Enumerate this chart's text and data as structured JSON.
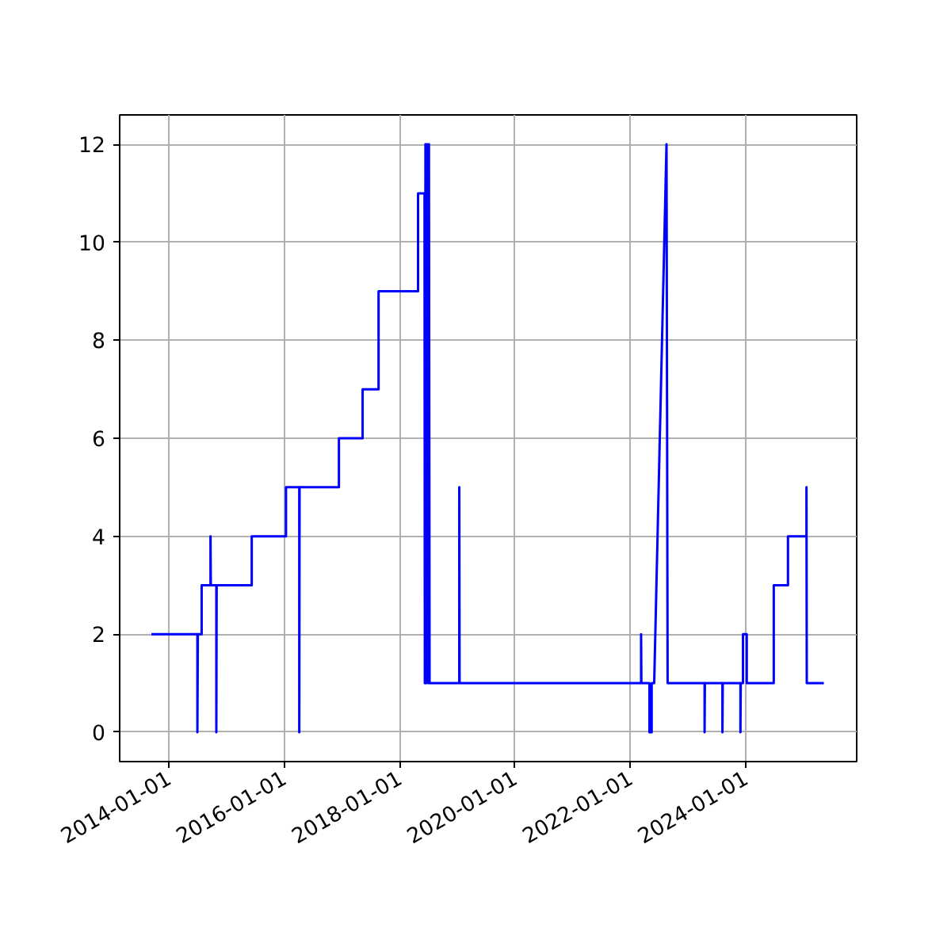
{
  "chart_data": {
    "type": "line",
    "x": [
      "2013-09-13",
      "2014-07-01",
      "2014-07-01",
      "2014-07-04",
      "2014-07-28",
      "2014-07-28",
      "2014-09-22",
      "2014-09-22",
      "2014-09-24",
      "2014-10-29",
      "2014-10-29",
      "2014-10-31",
      "2015-06-10",
      "2015-06-10",
      "2016-01-13",
      "2016-01-13",
      "2016-04-06",
      "2016-04-06",
      "2016-04-08",
      "2016-12-13",
      "2016-12-13",
      "2017-05-12",
      "2017-05-12",
      "2017-08-21",
      "2017-08-21",
      "2018-04-28",
      "2018-04-28",
      "2018-06-08",
      "2018-06-10",
      "2018-06-14",
      "2018-06-20",
      "2018-06-26",
      "2018-07-02",
      "2018-07-06",
      "2018-07-10",
      "2019-01-14",
      "2019-01-14",
      "2019-01-16",
      "2022-03-10",
      "2022-03-10",
      "2022-03-12",
      "2022-05-02",
      "2022-05-02",
      "2022-05-16",
      "2022-05-16",
      "2022-06-01",
      "2022-08-18",
      "2022-08-25",
      "2023-04-16",
      "2023-04-16",
      "2023-04-18",
      "2023-08-07",
      "2023-08-07",
      "2023-08-09",
      "2023-11-29",
      "2023-11-29",
      "2023-12-01",
      "2023-12-15",
      "2023-12-15",
      "2024-01-08",
      "2024-01-08",
      "2024-06-27",
      "2024-06-27",
      "2024-09-25",
      "2024-09-25",
      "2025-01-20",
      "2025-01-20",
      "2025-01-22",
      "2025-05-10"
    ],
    "series": [
      {
        "color": "#0000ff",
        "values": [
          2,
          2,
          0,
          2,
          2,
          3,
          3,
          4,
          3,
          3,
          0,
          3,
          3,
          4,
          4,
          5,
          5,
          0,
          5,
          5,
          6,
          6,
          7,
          7,
          9,
          9,
          11,
          11,
          1,
          12,
          1,
          12,
          1,
          12,
          1,
          1,
          5,
          1,
          1,
          2,
          1,
          1,
          0,
          0,
          1,
          1,
          12,
          1,
          1,
          0,
          1,
          1,
          0,
          1,
          1,
          0,
          1,
          1,
          2,
          2,
          1,
          1,
          3,
          3,
          4,
          4,
          5,
          1,
          1
        ]
      }
    ],
    "xlim": [
      "2013-02-24",
      "2025-12-04"
    ],
    "xticks": [
      "2014-01-01",
      "2016-01-01",
      "2018-01-01",
      "2020-01-01",
      "2022-01-01",
      "2024-01-01"
    ],
    "ylim": [
      -0.6,
      12.6
    ],
    "yticks": [
      0,
      2,
      4,
      6,
      8,
      10,
      12
    ],
    "grid": true
  }
}
